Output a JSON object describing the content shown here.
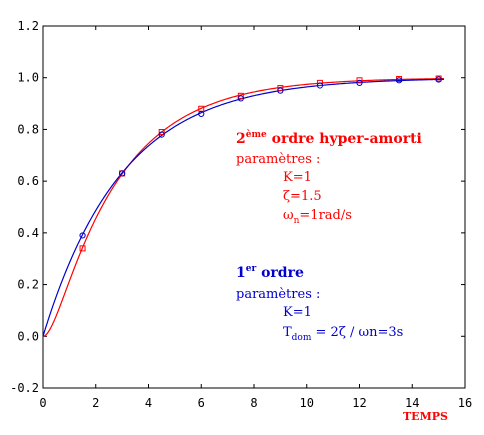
{
  "chart_data": {
    "type": "line",
    "xlabel": "TEMPS",
    "ylabel": "",
    "xlim": [
      0,
      16
    ],
    "ylim": [
      -0.2,
      1.2
    ],
    "xticks": [
      0,
      2,
      4,
      6,
      8,
      10,
      12,
      14,
      16
    ],
    "yticks": [
      -0.2,
      0.0,
      0.2,
      0.4,
      0.6,
      0.8,
      1.0,
      1.2
    ],
    "grid": false,
    "series": [
      {
        "name": "2ème ordre hyper-amorti",
        "color": "#ff0000",
        "marker": "square",
        "marker_x": [
          1.5,
          3.0,
          4.5,
          6.0,
          7.5,
          9.0,
          10.5,
          12.0,
          13.5,
          15.0
        ],
        "marker_y": [
          0.34,
          0.63,
          0.79,
          0.88,
          0.93,
          0.96,
          0.98,
          0.99,
          0.995,
          0.997
        ]
      },
      {
        "name": "1er ordre",
        "color": "#0000cc",
        "marker": "circle",
        "marker_x": [
          1.5,
          3.0,
          4.5,
          6.0,
          7.5,
          9.0,
          10.5,
          12.0,
          13.5,
          15.0
        ],
        "marker_y": [
          0.39,
          0.63,
          0.78,
          0.86,
          0.92,
          0.95,
          0.97,
          0.98,
          0.99,
          0.993
        ]
      }
    ],
    "annotations": {
      "red": {
        "title_pre": "2",
        "title_sup": "ème",
        "title_post": " ordre hyper-amorti",
        "params": "paramètres :",
        "k": "K=1",
        "zeta": "ζ=1.5",
        "omega_pre": "ω",
        "omega_sub": "n",
        "omega_post": "=1rad/s"
      },
      "blue": {
        "title_pre": "1",
        "title_sup": "er",
        "title_post": " ordre",
        "params": "paramètres :",
        "k": "K=1",
        "tdom_pre": "T",
        "tdom_sub": "dom",
        "tdom_post": " = 2ζ / ωn=3s"
      }
    }
  }
}
